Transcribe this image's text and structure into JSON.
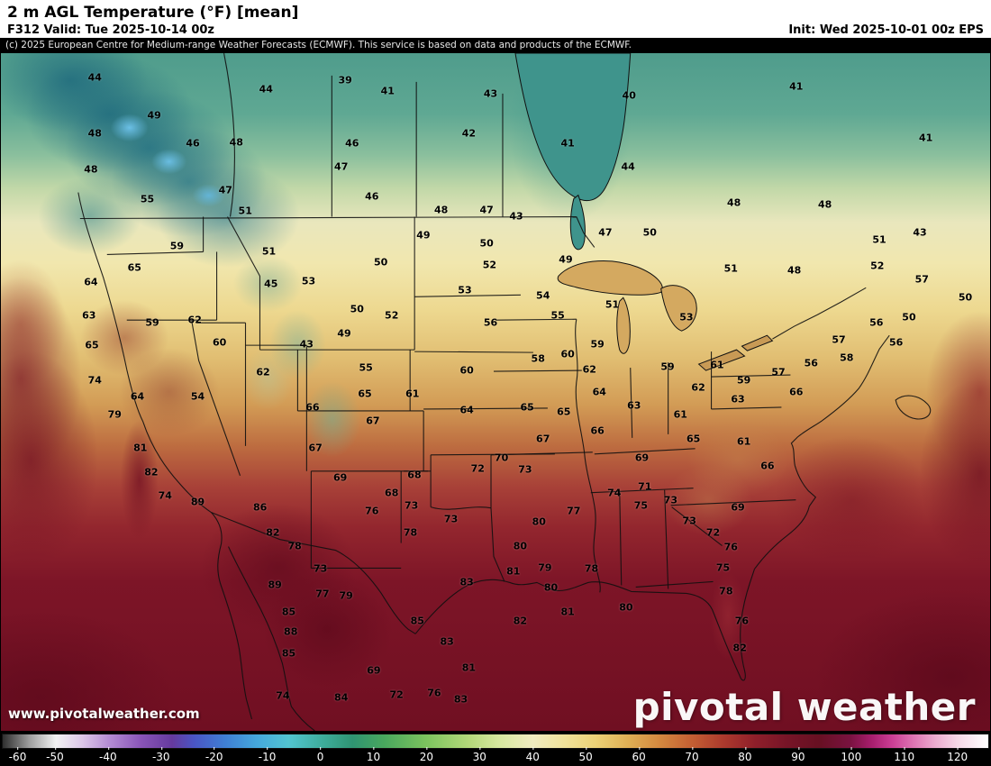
{
  "header": {
    "title": "2 m AGL Temperature (°F) [mean]",
    "valid": "F312 Valid: Tue 2025-10-14 00z",
    "init": "Init: Wed 2025-10-01 00z EPS",
    "copyright": "(c) 2025 European Centre for Medium-range Weather Forecasts (ECMWF). This service is based on data and products of the ECMWF."
  },
  "footer": {
    "watermark_url": "www.pivotalweather.com",
    "brand": "pivotal weather"
  },
  "colorbar": {
    "min": -60,
    "max": 126,
    "units": "°F",
    "ticks": [
      -60,
      -50,
      -40,
      -30,
      -20,
      -10,
      0,
      10,
      20,
      30,
      40,
      50,
      60,
      70,
      80,
      90,
      100,
      110,
      120
    ],
    "stops": [
      [
        -60,
        "#2e2e2e"
      ],
      [
        -55,
        "#9e9e9e"
      ],
      [
        -50,
        "#f2f2f2"
      ],
      [
        -45,
        "#dcc6e8"
      ],
      [
        -40,
        "#b48cd4"
      ],
      [
        -34,
        "#8a55b8"
      ],
      [
        -28,
        "#653a9e"
      ],
      [
        -24,
        "#4a55c4"
      ],
      [
        -18,
        "#3f7fd4"
      ],
      [
        -12,
        "#45a8dc"
      ],
      [
        -6,
        "#52c4d0"
      ],
      [
        0,
        "#3fae9e"
      ],
      [
        6,
        "#2f9472"
      ],
      [
        12,
        "#49a85e"
      ],
      [
        20,
        "#7cc45e"
      ],
      [
        28,
        "#b4d87a"
      ],
      [
        34,
        "#d8e8a0"
      ],
      [
        40,
        "#f0ecc0"
      ],
      [
        46,
        "#f0e29a"
      ],
      [
        52,
        "#ecd176"
      ],
      [
        58,
        "#e0b055"
      ],
      [
        64,
        "#d4883f"
      ],
      [
        70,
        "#c45f33"
      ],
      [
        76,
        "#ad3a2d"
      ],
      [
        82,
        "#8f1f2a"
      ],
      [
        88,
        "#771427"
      ],
      [
        94,
        "#671022"
      ],
      [
        100,
        "#7a1240"
      ],
      [
        104,
        "#a81e6e"
      ],
      [
        108,
        "#cc3f96"
      ],
      [
        112,
        "#df77b4"
      ],
      [
        116,
        "#ecabcf"
      ],
      [
        120,
        "#f5d7e6"
      ],
      [
        126,
        "#ffffff"
      ]
    ]
  },
  "map": {
    "region": "North America (CONUS + southern Canada + northern Mexico)",
    "field": "2 m AGL temperature ensemble mean",
    "stations": [
      [
        9.5,
        3.6,
        44
      ],
      [
        26.8,
        5.3,
        44
      ],
      [
        34.8,
        4.0,
        39
      ],
      [
        39.1,
        5.6,
        41
      ],
      [
        49.5,
        6.0,
        43
      ],
      [
        63.5,
        6.2,
        40
      ],
      [
        80.4,
        4.9,
        41
      ],
      [
        93.5,
        12.5,
        41
      ],
      [
        15.5,
        9.2,
        49
      ],
      [
        9.5,
        11.9,
        48
      ],
      [
        19.4,
        13.3,
        46
      ],
      [
        23.8,
        13.1,
        48
      ],
      [
        35.5,
        13.3,
        46
      ],
      [
        47.3,
        11.9,
        42
      ],
      [
        57.3,
        13.3,
        41
      ],
      [
        9.1,
        17.2,
        48
      ],
      [
        34.4,
        16.8,
        47
      ],
      [
        63.4,
        16.8,
        44
      ],
      [
        22.7,
        20.2,
        47
      ],
      [
        37.5,
        21.1,
        46
      ],
      [
        14.8,
        21.5,
        55
      ],
      [
        24.7,
        23.3,
        51
      ],
      [
        44.5,
        23.1,
        48
      ],
      [
        49.1,
        23.1,
        47
      ],
      [
        52.1,
        24.1,
        43
      ],
      [
        74.1,
        22.1,
        48
      ],
      [
        83.3,
        22.4,
        48
      ],
      [
        92.9,
        26.4,
        43
      ],
      [
        88.8,
        27.5,
        51
      ],
      [
        42.7,
        26.8,
        49
      ],
      [
        49.1,
        28.1,
        50
      ],
      [
        61.1,
        26.5,
        47
      ],
      [
        65.6,
        26.4,
        50
      ],
      [
        17.8,
        28.5,
        59
      ],
      [
        27.1,
        29.2,
        51
      ],
      [
        38.4,
        30.8,
        50
      ],
      [
        49.4,
        31.2,
        52
      ],
      [
        57.1,
        30.5,
        49
      ],
      [
        73.8,
        31.8,
        51
      ],
      [
        80.2,
        32.1,
        48
      ],
      [
        88.6,
        31.4,
        52
      ],
      [
        13.5,
        31.7,
        65
      ],
      [
        9.1,
        33.8,
        64
      ],
      [
        27.3,
        34.1,
        45
      ],
      [
        31.1,
        33.7,
        53
      ],
      [
        46.9,
        35.0,
        53
      ],
      [
        54.8,
        35.8,
        54
      ],
      [
        61.8,
        37.1,
        51
      ],
      [
        93.1,
        33.4,
        57
      ],
      [
        97.5,
        36.1,
        50
      ],
      [
        8.9,
        38.7,
        63
      ],
      [
        15.3,
        39.8,
        59
      ],
      [
        19.6,
        39.4,
        62
      ],
      [
        36.0,
        37.7,
        50
      ],
      [
        39.5,
        38.7,
        52
      ],
      [
        49.5,
        39.7,
        56
      ],
      [
        56.3,
        38.7,
        55
      ],
      [
        60.3,
        43.0,
        59
      ],
      [
        69.3,
        39.0,
        53
      ],
      [
        84.7,
        42.3,
        57
      ],
      [
        88.5,
        39.7,
        56
      ],
      [
        91.8,
        39.0,
        50
      ],
      [
        9.2,
        43.1,
        65
      ],
      [
        22.1,
        42.7,
        60
      ],
      [
        30.9,
        43.0,
        43
      ],
      [
        34.7,
        41.4,
        49
      ],
      [
        57.3,
        44.4,
        60
      ],
      [
        67.4,
        46.3,
        59
      ],
      [
        81.9,
        45.8,
        56
      ],
      [
        85.5,
        45.0,
        58
      ],
      [
        90.5,
        42.7,
        56
      ],
      [
        9.5,
        48.3,
        74
      ],
      [
        26.5,
        47.1,
        62
      ],
      [
        36.9,
        46.4,
        55
      ],
      [
        47.1,
        46.8,
        60
      ],
      [
        54.3,
        45.1,
        58
      ],
      [
        59.5,
        46.7,
        62
      ],
      [
        72.4,
        46.0,
        61
      ],
      [
        75.1,
        48.3,
        59
      ],
      [
        78.6,
        47.1,
        57
      ],
      [
        13.8,
        50.7,
        64
      ],
      [
        19.9,
        50.7,
        54
      ],
      [
        31.5,
        52.3,
        66
      ],
      [
        36.8,
        50.3,
        65
      ],
      [
        41.6,
        50.3,
        61
      ],
      [
        60.5,
        50.0,
        64
      ],
      [
        64.0,
        52.0,
        63
      ],
      [
        70.5,
        49.3,
        62
      ],
      [
        74.5,
        51.1,
        63
      ],
      [
        80.4,
        50.0,
        66
      ],
      [
        11.5,
        53.3,
        79
      ],
      [
        37.6,
        54.2,
        67
      ],
      [
        47.1,
        52.7,
        64
      ],
      [
        53.2,
        52.3,
        65
      ],
      [
        56.9,
        52.9,
        65
      ],
      [
        68.7,
        53.3,
        61
      ],
      [
        14.1,
        58.2,
        81
      ],
      [
        31.8,
        58.2,
        67
      ],
      [
        54.8,
        56.9,
        67
      ],
      [
        60.3,
        55.7,
        66
      ],
      [
        64.8,
        59.7,
        69
      ],
      [
        70.0,
        56.9,
        65
      ],
      [
        75.1,
        57.3,
        61
      ],
      [
        77.5,
        60.9,
        66
      ],
      [
        15.2,
        61.9,
        82
      ],
      [
        34.3,
        62.6,
        69
      ],
      [
        41.8,
        62.2,
        68
      ],
      [
        48.2,
        61.3,
        72
      ],
      [
        50.6,
        59.7,
        70
      ],
      [
        53.0,
        61.5,
        73
      ],
      [
        16.6,
        65.3,
        74
      ],
      [
        19.9,
        66.2,
        89
      ],
      [
        39.5,
        64.9,
        68
      ],
      [
        41.5,
        66.8,
        73
      ],
      [
        57.9,
        67.5,
        77
      ],
      [
        62.0,
        64.9,
        74
      ],
      [
        65.1,
        63.9,
        71
      ],
      [
        67.7,
        65.9,
        73
      ],
      [
        74.5,
        67.0,
        69
      ],
      [
        26.2,
        67.0,
        86
      ],
      [
        37.5,
        67.5,
        76
      ],
      [
        64.7,
        66.8,
        75
      ],
      [
        27.5,
        70.8,
        82
      ],
      [
        29.7,
        72.8,
        78
      ],
      [
        32.3,
        76.1,
        73
      ],
      [
        41.4,
        70.8,
        78
      ],
      [
        45.5,
        68.8,
        73
      ],
      [
        54.4,
        69.2,
        80
      ],
      [
        52.5,
        72.8,
        80
      ],
      [
        55.0,
        75.9,
        79
      ],
      [
        69.6,
        69.0,
        73
      ],
      [
        72.0,
        70.8,
        72
      ],
      [
        73.8,
        72.9,
        76
      ],
      [
        51.8,
        76.5,
        81
      ],
      [
        59.7,
        76.1,
        78
      ],
      [
        73.0,
        75.9,
        75
      ],
      [
        27.7,
        78.5,
        89
      ],
      [
        32.5,
        79.8,
        77
      ],
      [
        34.9,
        80.1,
        79
      ],
      [
        55.6,
        78.9,
        80
      ],
      [
        47.1,
        78.1,
        83
      ],
      [
        52.5,
        83.8,
        82
      ],
      [
        57.3,
        82.5,
        81
      ],
      [
        63.2,
        81.8,
        80
      ],
      [
        73.3,
        79.4,
        78
      ],
      [
        29.1,
        82.5,
        85
      ],
      [
        29.3,
        85.4,
        88
      ],
      [
        42.1,
        83.8,
        85
      ],
      [
        45.1,
        86.9,
        83
      ],
      [
        74.9,
        83.8,
        76
      ],
      [
        29.1,
        88.5,
        85
      ],
      [
        47.3,
        90.7,
        81
      ],
      [
        74.7,
        87.8,
        82
      ],
      [
        37.7,
        91.1,
        69
      ],
      [
        40.0,
        94.7,
        72
      ],
      [
        43.8,
        94.4,
        76
      ],
      [
        34.4,
        95.1,
        84
      ],
      [
        46.5,
        95.4,
        83
      ],
      [
        28.5,
        94.8,
        74
      ]
    ]
  }
}
